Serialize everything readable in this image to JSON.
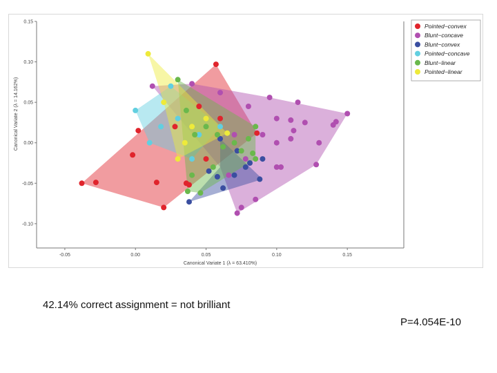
{
  "caption": "42.14% correct assignment = not brilliant",
  "p_value": "P=4.054E-10",
  "chart_data": {
    "type": "scatter",
    "title": "",
    "xlabel": "Canonical Variate 1 (λ = 63.410%)",
    "ylabel": "Canonical Variate 2 (λ = 14.162%)",
    "xlim": [
      -0.07,
      0.19
    ],
    "ylim": [
      -0.13,
      0.15
    ],
    "x_ticks": [
      "-0.05",
      "0.00",
      "0.05",
      "0.10",
      "0.15"
    ],
    "x_tick_values": [
      -0.05,
      0.0,
      0.05,
      0.1,
      0.15
    ],
    "y_ticks": [
      "0.15",
      "0.10",
      "0.05",
      "0.00",
      "-0.05",
      "-0.10"
    ],
    "y_tick_values": [
      0.15,
      0.1,
      0.05,
      0.0,
      -0.05,
      -0.1
    ],
    "grid": false,
    "legend_position": "top-right",
    "series": [
      {
        "name": "Pointed−convex",
        "color": "#e0242c",
        "hull": [
          [
            -0.038,
            -0.05
          ],
          [
            0.057,
            0.097
          ],
          [
            0.086,
            0.012
          ],
          [
            0.02,
            -0.08
          ]
        ],
        "points": [
          [
            -0.038,
            -0.05
          ],
          [
            -0.028,
            -0.049
          ],
          [
            -0.002,
            -0.015
          ],
          [
            0.002,
            0.015
          ],
          [
            0.015,
            -0.049
          ],
          [
            0.02,
            -0.08
          ],
          [
            0.028,
            0.02
          ],
          [
            0.036,
            -0.05
          ],
          [
            0.038,
            -0.052
          ],
          [
            0.045,
            0.045
          ],
          [
            0.057,
            0.097
          ],
          [
            0.086,
            0.012
          ],
          [
            0.06,
            0.03
          ],
          [
            0.05,
            -0.02
          ]
        ]
      },
      {
        "name": "Blunt−concave",
        "color": "#b04fb0",
        "hull": [
          [
            0.012,
            0.07
          ],
          [
            0.04,
            0.073
          ],
          [
            0.095,
            0.056
          ],
          [
            0.15,
            0.036
          ],
          [
            0.128,
            -0.027
          ],
          [
            0.072,
            -0.087
          ],
          [
            0.06,
            -0.03
          ]
        ],
        "points": [
          [
            0.012,
            0.07
          ],
          [
            0.04,
            0.073
          ],
          [
            0.095,
            0.056
          ],
          [
            0.115,
            0.05
          ],
          [
            0.15,
            0.036
          ],
          [
            0.128,
            -0.027
          ],
          [
            0.072,
            -0.087
          ],
          [
            0.1,
            0.03
          ],
          [
            0.11,
            0.028
          ],
          [
            0.12,
            0.025
          ],
          [
            0.14,
            0.022
          ],
          [
            0.142,
            0.026
          ],
          [
            0.08,
            0.045
          ],
          [
            0.06,
            0.062
          ],
          [
            0.1,
            -0.03
          ],
          [
            0.103,
            -0.03
          ],
          [
            0.09,
            0.01
          ],
          [
            0.1,
            0.0
          ],
          [
            0.11,
            0.005
          ],
          [
            0.112,
            0.015
          ],
          [
            0.13,
            0.0
          ],
          [
            0.07,
            0.01
          ],
          [
            0.078,
            -0.02
          ],
          [
            0.085,
            -0.07
          ],
          [
            0.075,
            -0.08
          ],
          [
            0.066,
            -0.04
          ]
        ]
      },
      {
        "name": "Blunt−convex",
        "color": "#3a4ea0",
        "hull": [
          [
            0.06,
            0.005
          ],
          [
            0.09,
            -0.045
          ],
          [
            0.038,
            -0.073
          ],
          [
            0.06,
            -0.03
          ]
        ],
        "points": [
          [
            0.038,
            -0.073
          ],
          [
            0.052,
            -0.035
          ],
          [
            0.062,
            -0.056
          ],
          [
            0.07,
            -0.04
          ],
          [
            0.078,
            -0.03
          ],
          [
            0.088,
            -0.045
          ],
          [
            0.09,
            -0.02
          ],
          [
            0.081,
            -0.025
          ],
          [
            0.072,
            -0.01
          ],
          [
            0.06,
            0.005
          ],
          [
            0.058,
            -0.042
          ]
        ]
      },
      {
        "name": "Pointed−concave",
        "color": "#62cfe0",
        "hull": [
          [
            0.0,
            0.04
          ],
          [
            0.025,
            0.07
          ],
          [
            0.06,
            0.02
          ],
          [
            0.04,
            -0.02
          ],
          [
            0.01,
            0.0
          ]
        ],
        "points": [
          [
            0.0,
            0.04
          ],
          [
            0.01,
            0.0
          ],
          [
            0.018,
            0.02
          ],
          [
            0.025,
            0.07
          ],
          [
            0.03,
            0.03
          ],
          [
            0.04,
            -0.02
          ],
          [
            0.06,
            0.02
          ],
          [
            0.045,
            0.01
          ]
        ]
      },
      {
        "name": "Blunt−linear",
        "color": "#6ab84c",
        "hull": [
          [
            0.03,
            0.078
          ],
          [
            0.085,
            0.02
          ],
          [
            0.085,
            -0.02
          ],
          [
            0.046,
            -0.062
          ],
          [
            0.037,
            -0.06
          ]
        ],
        "points": [
          [
            0.03,
            0.078
          ],
          [
            0.036,
            0.04
          ],
          [
            0.042,
            0.01
          ],
          [
            0.05,
            0.02
          ],
          [
            0.058,
            0.01
          ],
          [
            0.062,
            -0.005
          ],
          [
            0.07,
            0.0
          ],
          [
            0.075,
            -0.01
          ],
          [
            0.08,
            0.005
          ],
          [
            0.085,
            0.02
          ],
          [
            0.085,
            -0.02
          ],
          [
            0.083,
            -0.013
          ],
          [
            0.046,
            -0.062
          ],
          [
            0.037,
            -0.06
          ],
          [
            0.04,
            -0.04
          ],
          [
            0.055,
            -0.03
          ]
        ]
      },
      {
        "name": "Pointed−linear",
        "color": "#eeea3a",
        "hull": [
          [
            0.009,
            0.11
          ],
          [
            0.065,
            0.012
          ],
          [
            0.03,
            -0.02
          ],
          [
            0.02,
            0.05
          ]
        ],
        "points": [
          [
            0.009,
            0.11
          ],
          [
            0.065,
            0.012
          ],
          [
            0.03,
            -0.02
          ],
          [
            0.02,
            0.05
          ],
          [
            0.04,
            0.02
          ],
          [
            0.05,
            0.03
          ],
          [
            0.035,
            0.0
          ]
        ]
      }
    ]
  }
}
